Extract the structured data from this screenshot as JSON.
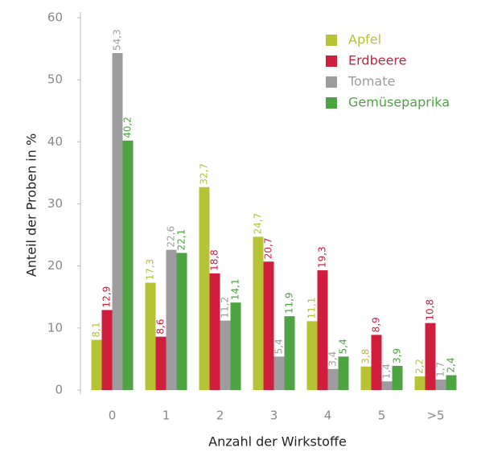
{
  "chart_data": {
    "type": "bar",
    "xlabel": "Anzahl der Wirkstoffe",
    "ylabel": "Anteil der Proben in %",
    "categories": [
      "0",
      "1",
      "2",
      "3",
      "4",
      "5",
      ">5"
    ],
    "series": [
      {
        "name": "Apfel",
        "color": "#b5c334",
        "values": [
          8.1,
          17.3,
          32.7,
          24.7,
          11.1,
          3.8,
          2.2
        ],
        "value_labels": [
          "8,1",
          "17,3",
          "32,7",
          "24,7",
          "11,1",
          "3,8",
          "2,2"
        ]
      },
      {
        "name": "Erdbeere",
        "color": "#cf1f3c",
        "values": [
          12.9,
          8.6,
          18.8,
          20.7,
          19.3,
          8.9,
          10.8
        ],
        "value_labels": [
          "12,9",
          "8,6",
          "18,8",
          "20,7",
          "19,3",
          "8,9",
          "10,8"
        ]
      },
      {
        "name": "Tomate",
        "color": "#9d9d9f",
        "values": [
          54.3,
          22.6,
          11.2,
          5.4,
          3.4,
          1.4,
          1.7
        ],
        "value_labels": [
          "54,3",
          "22,6",
          "11,2",
          "5,4",
          "3,4",
          "1,4",
          "1,7"
        ]
      },
      {
        "name": "Gemüsepaprika",
        "color": "#4ea343",
        "values": [
          40.2,
          22.1,
          14.1,
          11.9,
          5.4,
          3.9,
          2.4
        ],
        "value_labels": [
          "40,2",
          "22,1",
          "14,1",
          "11,9",
          "5,4",
          "3,9",
          "2,4"
        ]
      }
    ],
    "ylim": [
      0,
      60
    ],
    "yticks": [
      0,
      10,
      20,
      30,
      40,
      50,
      60
    ],
    "grid": false,
    "legend": "top-right"
  }
}
